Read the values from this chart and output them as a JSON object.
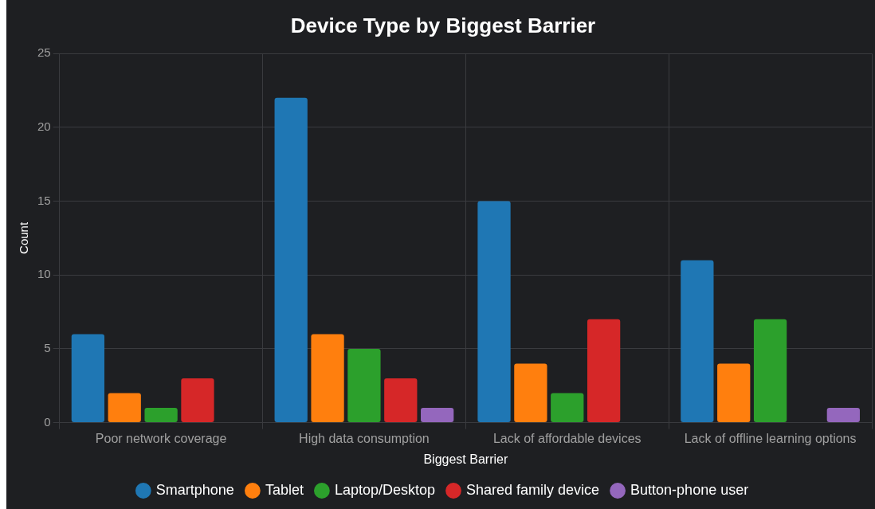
{
  "chart_data": {
    "type": "bar",
    "title": "Device Type by Biggest Barrier",
    "xlabel": "Biggest Barrier",
    "ylabel": "Count",
    "categories": [
      "Poor network coverage",
      "High data consumption",
      "Lack of affordable devices",
      "Lack of offline learning options"
    ],
    "series": [
      {
        "name": "Smartphone",
        "color": "#1f77b4",
        "values": [
          6,
          22,
          15,
          11
        ]
      },
      {
        "name": "Tablet",
        "color": "#ff7f0e",
        "values": [
          2,
          6,
          4,
          4
        ]
      },
      {
        "name": "Laptop/Desktop",
        "color": "#2ca02c",
        "values": [
          1,
          5,
          2,
          7
        ]
      },
      {
        "name": "Shared family device",
        "color": "#d62728",
        "values": [
          3,
          3,
          7,
          0
        ]
      },
      {
        "name": "Button-phone user",
        "color": "#9467bd",
        "values": [
          0,
          1,
          0,
          1
        ]
      }
    ],
    "ylim": [
      0,
      25
    ],
    "yticks": [
      0,
      5,
      10,
      15,
      20,
      25
    ],
    "grid": true,
    "legend": "bottom"
  }
}
